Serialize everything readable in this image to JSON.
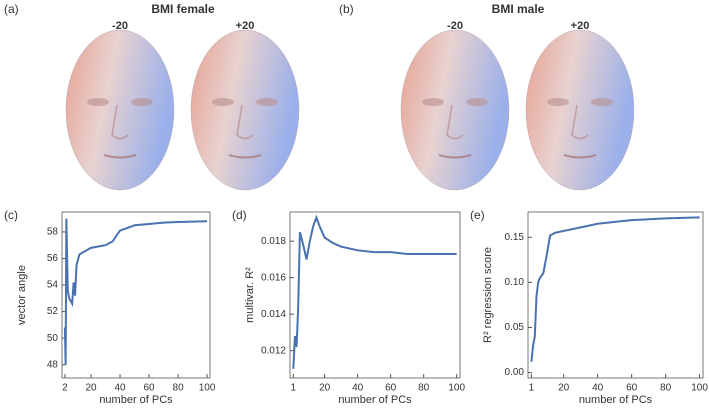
{
  "panels": [
    {
      "label": "(a)",
      "title": "BMI female",
      "left": "-20",
      "right": "+20"
    },
    {
      "label": "(b)",
      "title": "BMI male",
      "left": "-20",
      "right": "+20"
    }
  ],
  "chart_data": [
    {
      "type": "line",
      "label": "(c)",
      "x_label": "number of PCs",
      "y_label": "vector angle",
      "color": "#4a72b0",
      "x": [
        2,
        2.5,
        3,
        4,
        5,
        6,
        7,
        8,
        9,
        10,
        12,
        15,
        20,
        25,
        30,
        35,
        38,
        40,
        45,
        50,
        60,
        70,
        80,
        100
      ],
      "values": [
        50.8,
        48,
        59,
        53.5,
        53,
        52.8,
        52.6,
        54.2,
        53.2,
        55.5,
        56.3,
        56.5,
        56.8,
        56.9,
        57,
        57.3,
        57.8,
        58.1,
        58.3,
        58.5,
        58.6,
        58.7,
        58.75,
        58.8
      ],
      "xlim": [
        0,
        102
      ],
      "xticks": [
        2,
        20,
        40,
        60,
        80,
        100
      ],
      "ylim": [
        47,
        59.5
      ],
      "yticks": [
        48,
        50,
        52,
        54,
        56,
        58
      ]
    },
    {
      "type": "line",
      "label": "(d)",
      "x_label": "number of PCs",
      "y_label": "multivar. R²",
      "color": "#4a72b0",
      "x": [
        1,
        2,
        3,
        4,
        5,
        7,
        9,
        11,
        13,
        15,
        17,
        20,
        25,
        30,
        40,
        50,
        60,
        70,
        80,
        100
      ],
      "values": [
        0.011,
        0.0128,
        0.0122,
        0.0145,
        0.0185,
        0.0178,
        0.017,
        0.018,
        0.0188,
        0.0193,
        0.0188,
        0.0182,
        0.0179,
        0.0177,
        0.0175,
        0.0174,
        0.0174,
        0.0173,
        0.0173,
        0.0173
      ],
      "xlim": [
        -1,
        102
      ],
      "xticks": [
        1,
        20,
        40,
        60,
        80,
        100
      ],
      "ylim": [
        0.0105,
        0.0196
      ],
      "yticks": [
        0.012,
        0.014,
        0.016,
        0.018
      ]
    },
    {
      "type": "line",
      "label": "(e)",
      "x_label": "number of PCs",
      "y_label": "R² regression score",
      "color": "#4a72b0",
      "x": [
        1,
        2,
        3,
        4,
        5,
        6,
        8,
        10,
        12,
        15,
        20,
        30,
        40,
        50,
        60,
        80,
        100
      ],
      "values": [
        0.012,
        0.03,
        0.04,
        0.085,
        0.1,
        0.105,
        0.11,
        0.13,
        0.152,
        0.155,
        0.157,
        0.161,
        0.165,
        0.167,
        0.169,
        0.171,
        0.172
      ],
      "xlim": [
        -1,
        102
      ],
      "xticks": [
        1,
        20,
        40,
        60,
        80,
        100
      ],
      "ylim": [
        -0.006,
        0.178
      ],
      "yticks": [
        {
          "value": 0,
          "label": "0.00"
        },
        0.05,
        {
          "value": 0.1,
          "label": "0.10"
        },
        0.15
      ]
    }
  ]
}
